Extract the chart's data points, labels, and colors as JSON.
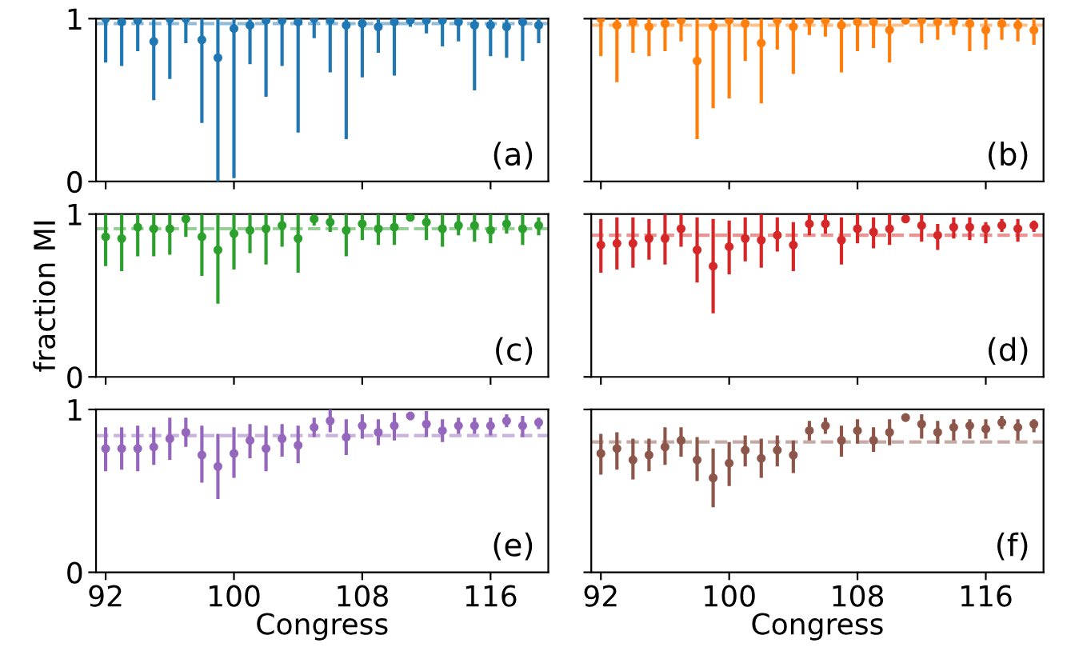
{
  "chart_data": [
    {
      "type": "scatter",
      "x": [
        92,
        93,
        94,
        95,
        96,
        97,
        98,
        99,
        100,
        101,
        102,
        103,
        104,
        105,
        106,
        107,
        108,
        109,
        110,
        111,
        112,
        113,
        114,
        115,
        116,
        117,
        118,
        119
      ],
      "xlim": [
        91.4,
        119.6
      ],
      "xticks": [
        92,
        100,
        108,
        116
      ],
      "ylim": [
        0,
        1
      ],
      "yticks": [
        0,
        1
      ],
      "tick_labels": "y",
      "marker": "circle",
      "annotations": [
        "(a)"
      ],
      "ref_lines": [
        {
          "axis": "y",
          "value": 0.97,
          "color": "#8fbbd9",
          "line_style": "dashed"
        }
      ],
      "series": [
        {
          "color": "#1f77b4",
          "values": [
            1.0,
            0.98,
            0.99,
            0.86,
            1.0,
            1.0,
            0.87,
            0.76,
            0.94,
            0.96,
            0.99,
            0.99,
            0.98,
            1.0,
            0.99,
            0.96,
            0.97,
            0.95,
            0.98,
            0.99,
            0.99,
            0.99,
            0.98,
            0.96,
            0.96,
            0.95,
            0.98,
            0.96
          ],
          "errors": [
            [
              0.73,
              1.0
            ],
            [
              0.71,
              1.0
            ],
            [
              0.8,
              1.0
            ],
            [
              0.5,
              1.0
            ],
            [
              0.63,
              1.0
            ],
            [
              0.85,
              1.0
            ],
            [
              0.36,
              1.0
            ],
            [
              0.0,
              1.0
            ],
            [
              0.02,
              1.0
            ],
            [
              0.72,
              1.0
            ],
            [
              0.52,
              1.0
            ],
            [
              0.71,
              1.0
            ],
            [
              0.3,
              1.0
            ],
            [
              0.88,
              1.0
            ],
            [
              0.67,
              1.0
            ],
            [
              0.26,
              1.0
            ],
            [
              0.64,
              1.0
            ],
            [
              0.79,
              1.0
            ],
            [
              0.65,
              1.0
            ],
            [
              0.95,
              1.0
            ],
            [
              0.91,
              1.0
            ],
            [
              0.83,
              1.0
            ],
            [
              0.86,
              1.0
            ],
            [
              0.56,
              1.0
            ],
            [
              0.77,
              1.0
            ],
            [
              0.76,
              1.0
            ],
            [
              0.74,
              1.0
            ],
            [
              0.85,
              1.0
            ]
          ]
        }
      ]
    },
    {
      "type": "scatter",
      "x": [
        92,
        93,
        94,
        95,
        96,
        97,
        98,
        99,
        100,
        101,
        102,
        103,
        104,
        105,
        106,
        107,
        108,
        109,
        110,
        111,
        112,
        113,
        114,
        115,
        116,
        117,
        118,
        119
      ],
      "xlim": [
        91.4,
        119.6
      ],
      "xticks": [
        92,
        100,
        108,
        116
      ],
      "ylim": [
        0,
        1
      ],
      "yticks": [
        0,
        1
      ],
      "tick_labels": false,
      "marker": "circle",
      "annotations": [
        "(b)"
      ],
      "ref_lines": [
        {
          "axis": "y",
          "value": 0.96,
          "color": "#ffbf86",
          "line_style": "dashed"
        }
      ],
      "series": [
        {
          "color": "#ff7f0e",
          "values": [
            1.0,
            0.96,
            0.98,
            0.95,
            0.97,
            0.99,
            0.74,
            0.95,
            0.99,
            0.97,
            0.85,
            0.99,
            0.95,
            0.99,
            0.99,
            0.96,
            0.98,
            0.98,
            0.93,
            0.99,
            0.99,
            0.98,
            0.98,
            0.97,
            0.93,
            0.97,
            0.96,
            0.93
          ],
          "errors": [
            [
              0.77,
              1.0
            ],
            [
              0.61,
              1.0
            ],
            [
              0.79,
              1.0
            ],
            [
              0.77,
              1.0
            ],
            [
              0.8,
              1.0
            ],
            [
              0.86,
              1.0
            ],
            [
              0.26,
              1.0
            ],
            [
              0.45,
              1.0
            ],
            [
              0.51,
              1.0
            ],
            [
              0.74,
              1.0
            ],
            [
              0.48,
              1.0
            ],
            [
              0.81,
              1.0
            ],
            [
              0.66,
              1.0
            ],
            [
              0.9,
              1.0
            ],
            [
              0.89,
              1.0
            ],
            [
              0.67,
              1.0
            ],
            [
              0.8,
              1.0
            ],
            [
              0.82,
              1.0
            ],
            [
              0.73,
              1.0
            ],
            [
              0.97,
              1.0
            ],
            [
              0.85,
              1.0
            ],
            [
              0.87,
              1.0
            ],
            [
              0.9,
              1.0
            ],
            [
              0.8,
              1.0
            ],
            [
              0.81,
              1.0
            ],
            [
              0.87,
              1.0
            ],
            [
              0.86,
              1.0
            ],
            [
              0.84,
              1.0
            ]
          ]
        }
      ]
    },
    {
      "type": "scatter",
      "x": [
        92,
        93,
        94,
        95,
        96,
        97,
        98,
        99,
        100,
        101,
        102,
        103,
        104,
        105,
        106,
        107,
        108,
        109,
        110,
        111,
        112,
        113,
        114,
        115,
        116,
        117,
        118,
        119
      ],
      "xlim": [
        91.4,
        119.6
      ],
      "xticks": [
        92,
        100,
        108,
        116
      ],
      "ylim": [
        0,
        1
      ],
      "yticks": [
        0,
        1
      ],
      "tick_labels": "y",
      "marker": "circle",
      "ylabel": "fraction MI",
      "annotations": [
        "(c)"
      ],
      "ref_lines": [
        {
          "axis": "y",
          "value": 0.91,
          "color": "#95cf95",
          "line_style": "dashed"
        }
      ],
      "series": [
        {
          "color": "#2ca02c",
          "values": [
            0.86,
            0.85,
            0.92,
            0.91,
            0.91,
            0.97,
            0.86,
            0.78,
            0.88,
            0.9,
            0.91,
            0.93,
            0.85,
            0.97,
            0.95,
            0.9,
            0.94,
            0.91,
            0.92,
            0.98,
            0.95,
            0.91,
            0.93,
            0.93,
            0.9,
            0.94,
            0.91,
            0.93
          ],
          "errors": [
            [
              0.68,
              1.0
            ],
            [
              0.65,
              1.0
            ],
            [
              0.74,
              1.0
            ],
            [
              0.74,
              1.0
            ],
            [
              0.75,
              1.0
            ],
            [
              0.86,
              1.0
            ],
            [
              0.62,
              1.0
            ],
            [
              0.45,
              1.0
            ],
            [
              0.66,
              1.0
            ],
            [
              0.76,
              1.0
            ],
            [
              0.69,
              1.0
            ],
            [
              0.8,
              1.0
            ],
            [
              0.64,
              1.0
            ],
            [
              0.93,
              1.0
            ],
            [
              0.89,
              1.0
            ],
            [
              0.74,
              1.0
            ],
            [
              0.84,
              1.0
            ],
            [
              0.81,
              1.0
            ],
            [
              0.81,
              1.0
            ],
            [
              0.97,
              1.0
            ],
            [
              0.84,
              1.0
            ],
            [
              0.8,
              1.0
            ],
            [
              0.87,
              1.0
            ],
            [
              0.83,
              1.0
            ],
            [
              0.82,
              1.0
            ],
            [
              0.88,
              1.0
            ],
            [
              0.81,
              1.0
            ],
            [
              0.87,
              0.98
            ]
          ]
        }
      ]
    },
    {
      "type": "scatter",
      "x": [
        92,
        93,
        94,
        95,
        96,
        97,
        98,
        99,
        100,
        101,
        102,
        103,
        104,
        105,
        106,
        107,
        108,
        109,
        110,
        111,
        112,
        113,
        114,
        115,
        116,
        117,
        118,
        119
      ],
      "xlim": [
        91.4,
        119.6
      ],
      "xticks": [
        92,
        100,
        108,
        116
      ],
      "ylim": [
        0,
        1
      ],
      "yticks": [
        0,
        1
      ],
      "tick_labels": false,
      "marker": "circle",
      "annotations": [
        "(d)"
      ],
      "ref_lines": [
        {
          "axis": "y",
          "value": 0.87,
          "color": "#ea9393",
          "line_style": "dashed"
        }
      ],
      "series": [
        {
          "color": "#d62728",
          "values": [
            0.81,
            0.82,
            0.82,
            0.85,
            0.85,
            0.91,
            0.78,
            0.68,
            0.8,
            0.85,
            0.84,
            0.87,
            0.81,
            0.94,
            0.94,
            0.84,
            0.91,
            0.89,
            0.91,
            0.97,
            0.93,
            0.87,
            0.92,
            0.92,
            0.91,
            0.93,
            0.91,
            0.93
          ],
          "errors": [
            [
              0.64,
              0.97
            ],
            [
              0.66,
              0.98
            ],
            [
              0.67,
              0.98
            ],
            [
              0.72,
              0.97
            ],
            [
              0.69,
              1.0
            ],
            [
              0.8,
              1.0
            ],
            [
              0.58,
              0.98
            ],
            [
              0.39,
              0.97
            ],
            [
              0.63,
              0.96
            ],
            [
              0.71,
              0.98
            ],
            [
              0.67,
              1.0
            ],
            [
              0.77,
              0.98
            ],
            [
              0.65,
              0.95
            ],
            [
              0.87,
              1.0
            ],
            [
              0.88,
              1.0
            ],
            [
              0.69,
              0.98
            ],
            [
              0.82,
              1.0
            ],
            [
              0.79,
              0.98
            ],
            [
              0.81,
              1.0
            ],
            null,
            [
              0.83,
              1.0
            ],
            [
              0.78,
              0.94
            ],
            [
              0.85,
              0.98
            ],
            [
              0.84,
              0.98
            ],
            [
              0.82,
              0.95
            ],
            [
              0.89,
              0.97
            ],
            [
              0.83,
              0.97
            ],
            [
              0.89,
              0.96
            ]
          ]
        }
      ]
    },
    {
      "type": "scatter",
      "x": [
        92,
        93,
        94,
        95,
        96,
        97,
        98,
        99,
        100,
        101,
        102,
        103,
        104,
        105,
        106,
        107,
        108,
        109,
        110,
        111,
        112,
        113,
        114,
        115,
        116,
        117,
        118,
        119
      ],
      "xlim": [
        91.4,
        119.6
      ],
      "xticks": [
        92,
        100,
        108,
        116
      ],
      "ylim": [
        0,
        1
      ],
      "yticks": [
        0,
        1
      ],
      "marker": "circle",
      "xlabel": "Congress",
      "annotations": [
        "(e)"
      ],
      "ref_lines": [
        {
          "axis": "y",
          "value": 0.84,
          "color": "#c9b3de",
          "line_style": "dashed"
        }
      ],
      "series": [
        {
          "color": "#9467bd",
          "values": [
            0.76,
            0.76,
            0.76,
            0.77,
            0.82,
            0.86,
            0.72,
            0.65,
            0.73,
            0.81,
            0.76,
            0.82,
            0.78,
            0.89,
            0.93,
            0.83,
            0.9,
            0.86,
            0.9,
            0.96,
            0.91,
            0.87,
            0.9,
            0.9,
            0.9,
            0.93,
            0.9,
            0.92
          ],
          "errors": [
            [
              0.62,
              0.89
            ],
            [
              0.63,
              0.89
            ],
            [
              0.62,
              0.9
            ],
            [
              0.66,
              0.89
            ],
            [
              0.69,
              0.95
            ],
            [
              0.77,
              0.95
            ],
            [
              0.55,
              0.9
            ],
            [
              0.45,
              0.85
            ],
            [
              0.58,
              0.89
            ],
            [
              0.7,
              0.91
            ],
            [
              0.62,
              0.9
            ],
            [
              0.71,
              0.91
            ],
            [
              0.67,
              0.9
            ],
            [
              0.83,
              0.95
            ],
            [
              0.86,
              1.0
            ],
            [
              0.72,
              0.94
            ],
            [
              0.82,
              0.97
            ],
            [
              0.78,
              0.94
            ],
            [
              0.81,
              0.98
            ],
            null,
            [
              0.83,
              0.99
            ],
            [
              0.8,
              0.94
            ],
            [
              0.85,
              0.95
            ],
            [
              0.85,
              0.95
            ],
            [
              0.84,
              0.95
            ],
            [
              0.89,
              0.97
            ],
            [
              0.83,
              0.96
            ],
            [
              0.88,
              0.95
            ]
          ]
        }
      ]
    },
    {
      "type": "scatter",
      "x": [
        92,
        93,
        94,
        95,
        96,
        97,
        98,
        99,
        100,
        101,
        102,
        103,
        104,
        105,
        106,
        107,
        108,
        109,
        110,
        111,
        112,
        113,
        114,
        115,
        116,
        117,
        118,
        119
      ],
      "xlim": [
        91.4,
        119.6
      ],
      "xticks": [
        92,
        100,
        108,
        116
      ],
      "ylim": [
        0,
        1
      ],
      "yticks": [
        0,
        1
      ],
      "tick_labels": "x",
      "marker": "circle",
      "xlabel": "Congress",
      "annotations": [
        "(f)"
      ],
      "ref_lines": [
        {
          "axis": "y",
          "value": 0.8,
          "color": "#c5aaa5",
          "line_style": "dashed"
        }
      ],
      "series": [
        {
          "color": "#8c564b",
          "values": [
            0.73,
            0.76,
            0.69,
            0.72,
            0.77,
            0.81,
            0.69,
            0.58,
            0.67,
            0.75,
            0.7,
            0.75,
            0.72,
            0.87,
            0.9,
            0.81,
            0.87,
            0.81,
            0.86,
            0.95,
            0.91,
            0.86,
            0.89,
            0.9,
            0.88,
            0.92,
            0.89,
            0.91
          ],
          "errors": [
            [
              0.6,
              0.85
            ],
            [
              0.63,
              0.86
            ],
            [
              0.57,
              0.82
            ],
            [
              0.62,
              0.82
            ],
            [
              0.66,
              0.89
            ],
            [
              0.71,
              0.89
            ],
            [
              0.56,
              0.83
            ],
            [
              0.4,
              0.76
            ],
            [
              0.53,
              0.8
            ],
            [
              0.65,
              0.84
            ],
            [
              0.58,
              0.82
            ],
            [
              0.65,
              0.84
            ],
            [
              0.61,
              0.81
            ],
            [
              0.81,
              0.93
            ],
            [
              0.85,
              0.95
            ],
            [
              0.71,
              0.9
            ],
            [
              0.79,
              0.94
            ],
            [
              0.74,
              0.89
            ],
            [
              0.78,
              0.94
            ],
            null,
            [
              0.82,
              0.97
            ],
            [
              0.79,
              0.93
            ],
            [
              0.81,
              0.94
            ],
            [
              0.82,
              0.94
            ],
            [
              0.82,
              0.94
            ],
            [
              0.88,
              0.96
            ],
            [
              0.81,
              0.94
            ],
            [
              0.86,
              0.94
            ]
          ]
        }
      ]
    }
  ]
}
